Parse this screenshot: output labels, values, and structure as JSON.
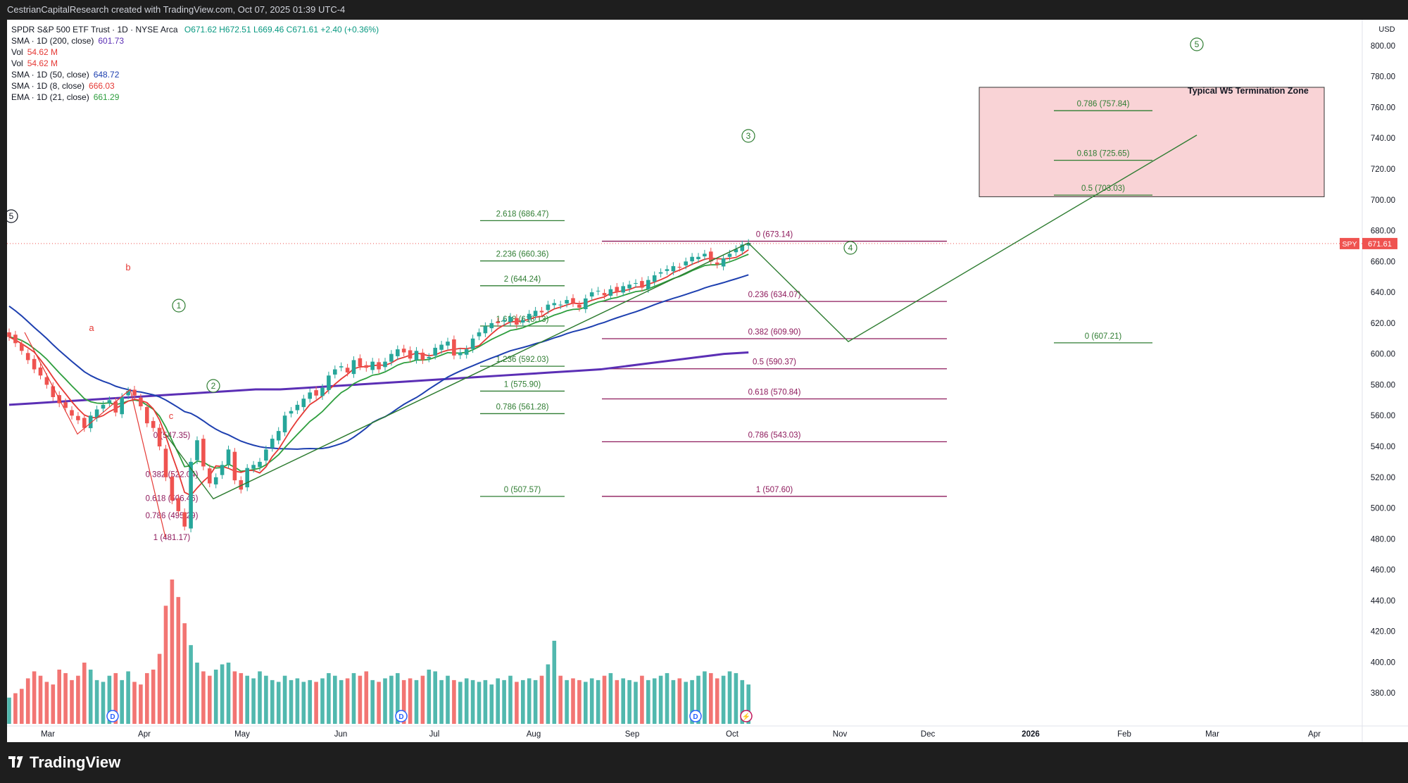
{
  "header": {
    "caption": "CestrianCapitalResearch created with TradingView.com, Oct 07, 2025 01:39 UTC-4"
  },
  "legend": {
    "title": "SPDR S&P 500 ETF Trust · 1D · NYSE Arca",
    "ohlc": "O671.62 H672.51 L669.46 C671.61 +2.40 (+0.36%)",
    "indicators": [
      {
        "label": "SMA · 1D (200, close)",
        "value": "601.73",
        "color": "#5b2fb5"
      },
      {
        "label": "Vol",
        "value": "54.62 M",
        "color": "#e53935"
      },
      {
        "label": "Vol",
        "value": "54.62 M",
        "color": "#e53935"
      },
      {
        "label": "SMA · 1D (50, close)",
        "value": "648.72",
        "color": "#1e40b0"
      },
      {
        "label": "SMA · 1D (8, close)",
        "value": "666.03",
        "color": "#e53935"
      },
      {
        "label": "EMA · 1D (21, close)",
        "value": "661.29",
        "color": "#2e9e3e"
      }
    ]
  },
  "colors": {
    "up": "#26a69a",
    "down": "#ef5350",
    "fibGreen": "#2f7d32",
    "fibPurple": "#8e1a5c",
    "sma200": "#5b2fb5",
    "sma50": "#1e40b0",
    "sma8": "#e53935",
    "ema21": "#2e9e3e",
    "wave": "#2f7d32",
    "zone": "#f9d3d6"
  },
  "chart_data": {
    "type": "candlestick",
    "symbol": "SPY",
    "last_price_label": "671.61",
    "currency_label": "USD",
    "y_range": [
      360,
      810
    ],
    "y_ticks": [
      "380.00",
      "400.00",
      "420.00",
      "440.00",
      "460.00",
      "480.00",
      "500.00",
      "520.00",
      "540.00",
      "560.00",
      "580.00",
      "600.00",
      "620.00",
      "640.00",
      "660.00",
      "680.00",
      "700.00",
      "720.00",
      "740.00",
      "760.00",
      "780.00",
      "800.00"
    ],
    "x_ticks": [
      "Mar",
      "Apr",
      "May",
      "Jun",
      "Jul",
      "Aug",
      "Sep",
      "Oct",
      "Nov",
      "Dec",
      "2026",
      "Feb",
      "Mar",
      "Apr"
    ],
    "closes": [
      611,
      607,
      602,
      596,
      590,
      586,
      580,
      572,
      568,
      565,
      560,
      557,
      552,
      560,
      564,
      567,
      570,
      562,
      572,
      576,
      573,
      566,
      555,
      552,
      540,
      520,
      505,
      498,
      488,
      530,
      544,
      527,
      516,
      520,
      528,
      538,
      518,
      512,
      526,
      528,
      530,
      538,
      545,
      550,
      560,
      563,
      567,
      571,
      575,
      573,
      578,
      586,
      590,
      592,
      588,
      596,
      592,
      591,
      595,
      590,
      595,
      600,
      603,
      601,
      597,
      602,
      596,
      598,
      604,
      606,
      608,
      599,
      601,
      603,
      610,
      614,
      618,
      620,
      620,
      622,
      624,
      619,
      622,
      626,
      628,
      627,
      632,
      633,
      632,
      635,
      633,
      630,
      636,
      640,
      641,
      638,
      642,
      640,
      644,
      645,
      646,
      643,
      648,
      651,
      653,
      655,
      657,
      656,
      660,
      663,
      663,
      665,
      660,
      658,
      662,
      665,
      668,
      671,
      672
    ],
    "volume_levels": [
      0.3,
      0.35,
      0.4,
      0.52,
      0.6,
      0.55,
      0.48,
      0.45,
      0.62,
      0.58,
      0.5,
      0.55,
      0.7,
      0.62,
      0.5,
      0.48,
      0.55,
      0.58,
      0.5,
      0.6,
      0.48,
      0.45,
      0.58,
      0.62,
      0.8,
      1.35,
      1.65,
      1.45,
      1.15,
      0.9,
      0.7,
      0.6,
      0.55,
      0.62,
      0.68,
      0.7,
      0.6,
      0.58,
      0.55,
      0.52,
      0.6,
      0.55,
      0.5,
      0.48,
      0.55,
      0.5,
      0.52,
      0.48,
      0.5,
      0.48,
      0.52,
      0.58,
      0.55,
      0.5,
      0.52,
      0.58,
      0.55,
      0.6,
      0.5,
      0.48,
      0.52,
      0.55,
      0.58,
      0.5,
      0.52,
      0.5,
      0.55,
      0.62,
      0.6,
      0.5,
      0.55,
      0.5,
      0.48,
      0.52,
      0.5,
      0.48,
      0.5,
      0.45,
      0.52,
      0.5,
      0.55,
      0.48,
      0.5,
      0.52,
      0.5,
      0.55,
      0.68,
      0.95,
      0.55,
      0.5,
      0.52,
      0.5,
      0.48,
      0.52,
      0.5,
      0.55,
      0.58,
      0.5,
      0.52,
      0.5,
      0.48,
      0.55,
      0.5,
      0.52,
      0.55,
      0.58,
      0.5,
      0.52,
      0.48,
      0.5,
      0.55,
      0.6,
      0.58,
      0.52,
      0.55,
      0.6,
      0.58,
      0.5,
      0.45
    ],
    "volume_markers": [
      "D",
      "D",
      "D",
      "⚡"
    ],
    "sma200": [
      567,
      568,
      569,
      570,
      571,
      572,
      573,
      574,
      575,
      576,
      577,
      577,
      578,
      579,
      580,
      581,
      582,
      583,
      584,
      585,
      586,
      587,
      588,
      589,
      590,
      592,
      594,
      596,
      598,
      600,
      601
    ],
    "fib_green": [
      {
        "label": "2.618 (686.47)",
        "y": 686.47
      },
      {
        "label": "2.236 (660.36)",
        "y": 660.36
      },
      {
        "label": "2 (644.24)",
        "y": 644.24
      },
      {
        "label": "1.618 (618.13)",
        "y": 618.13
      },
      {
        "label": "1.236 (592.03)",
        "y": 592.03
      },
      {
        "label": "1 (575.90)",
        "y": 575.9
      },
      {
        "label": "0.786 (561.28)",
        "y": 561.28
      },
      {
        "label": "0 (507.57)",
        "y": 507.57
      }
    ],
    "fib_purple": [
      {
        "label": "0 (673.14)",
        "y": 673.14
      },
      {
        "label": "0.236 (634.07)",
        "y": 634.07
      },
      {
        "label": "0.382 (609.90)",
        "y": 609.9
      },
      {
        "label": "0.5 (590.37)",
        "y": 590.37
      },
      {
        "label": "0.618 (570.84)",
        "y": 570.84
      },
      {
        "label": "0.786 (543.03)",
        "y": 543.03
      },
      {
        "label": "1 (507.60)",
        "y": 507.6
      }
    ],
    "fib_small": [
      {
        "label": "0 (547.35)",
        "y": 547.35
      },
      {
        "label": "0.382 (522.04)",
        "y": 522.04
      },
      {
        "label": "0.618 (506.46)",
        "y": 506.46
      },
      {
        "label": "0.786 (495.29)",
        "y": 495.29
      },
      {
        "label": "1 (481.17)",
        "y": 481.17
      }
    ],
    "fib_target": [
      {
        "label": "0.786 (757.84)",
        "y": 757.84
      },
      {
        "label": "0.618 (725.65)",
        "y": 725.65
      },
      {
        "label": "0.5 (703.03)",
        "y": 703.03
      },
      {
        "label": "0 (607.21)",
        "y": 607.21
      }
    ],
    "zone": {
      "label": "Typical W5 Termination Zone",
      "y_top": 773,
      "y_bottom": 702
    },
    "wave_labels": [
      "5",
      "1",
      "2",
      "3",
      "4",
      "5"
    ],
    "abc_labels": [
      "a",
      "b",
      "c"
    ]
  }
}
